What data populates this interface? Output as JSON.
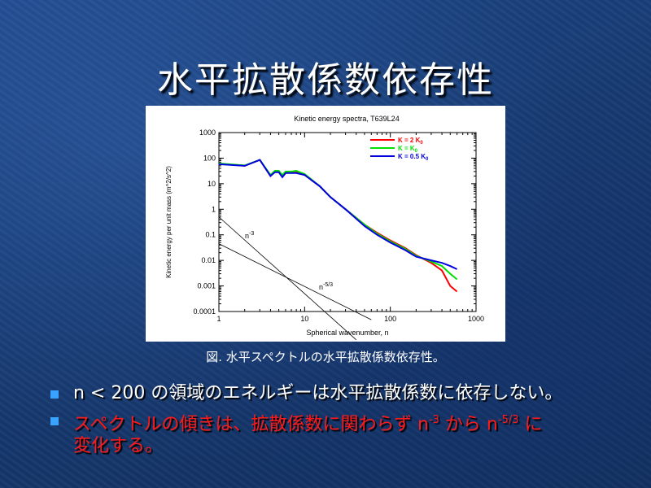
{
  "slide": {
    "title": "水平拡散係数依存性",
    "caption": "図. 水平スペクトルの水平拡散係数依存性。",
    "bullets": [
      {
        "text": "n < 200 の領域のエネルギーは水平拡散係数に依存しない。",
        "color": "#ffffff"
      },
      {
        "text_part1": "スペクトルの傾きは、拡散係数に関わらず n",
        "sup1": "-3",
        "text_part2": " から n",
        "sup2": "-5/3",
        "text_part3": " に",
        "text_line2": "変化する。",
        "color": "#ff1a1a"
      }
    ]
  },
  "chart_data": {
    "type": "line",
    "title": "Kinetic energy spectra, T639L24",
    "xlabel": "Spherical wavenumber, n",
    "ylabel": "Kinetic energy per unit mass (m^2/s^2)",
    "xscale": "log",
    "yscale": "log",
    "xlim": [
      1,
      1000
    ],
    "ylim": [
      0.0001,
      1000
    ],
    "xticks": [
      "1",
      "10",
      "100",
      "1000"
    ],
    "yticks": [
      "0.0001",
      "0.001",
      "0.01",
      "0.1",
      "1",
      "10",
      "100",
      "1000"
    ],
    "legend_position": "top-right",
    "series": [
      {
        "name": "K = 2 K",
        "subscript": "0",
        "color": "#ff0000",
        "x": [
          1,
          2,
          3,
          4,
          4.5,
          5,
          5.5,
          6,
          7,
          8,
          10,
          15,
          20,
          30,
          50,
          70,
          100,
          150,
          200,
          300,
          400,
          500,
          600
        ],
        "y": [
          60,
          50,
          85,
          20,
          30,
          30,
          20,
          28,
          28,
          30,
          22,
          8,
          3,
          1,
          0.25,
          0.12,
          0.06,
          0.03,
          0.016,
          0.008,
          0.004,
          0.001,
          0.0006
        ]
      },
      {
        "name": "K = K",
        "subscript": "0",
        "color": "#00e000",
        "x": [
          1,
          2,
          3,
          4,
          4.5,
          5,
          5.5,
          6,
          7,
          8,
          10,
          15,
          20,
          30,
          50,
          70,
          100,
          150,
          200,
          300,
          400,
          500,
          600
        ],
        "y": [
          62,
          52,
          85,
          22,
          32,
          32,
          22,
          30,
          30,
          32,
          24,
          8,
          3,
          1,
          0.25,
          0.11,
          0.055,
          0.028,
          0.015,
          0.009,
          0.006,
          0.003,
          0.0018
        ]
      },
      {
        "name": "K = 0.5 K",
        "subscript": "0",
        "color": "#0000e0",
        "x": [
          1,
          2,
          3,
          4,
          4.5,
          5,
          5.5,
          6,
          7,
          8,
          10,
          15,
          20,
          30,
          50,
          70,
          100,
          150,
          200,
          300,
          400,
          500,
          600
        ],
        "y": [
          58,
          50,
          85,
          20,
          28,
          28,
          18,
          26,
          26,
          26,
          22,
          8,
          3,
          1,
          0.22,
          0.1,
          0.05,
          0.025,
          0.014,
          0.01,
          0.008,
          0.006,
          0.0045
        ]
      }
    ],
    "reference_lines": [
      {
        "label": "n",
        "sup": "-3",
        "x": [
          1,
          40
        ],
        "y": [
          0.5,
          7.8e-06
        ]
      },
      {
        "label": "n",
        "sup": "-5/3",
        "x": [
          1,
          60
        ],
        "y": [
          0.045,
          4.76e-05
        ]
      }
    ]
  }
}
